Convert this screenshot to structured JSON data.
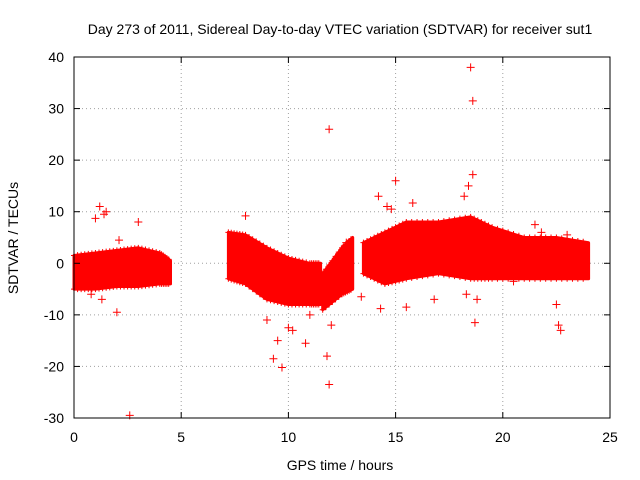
{
  "chart_data": {
    "type": "scatter",
    "title": "Day 273 of 2011, Sidereal Day-to-day VTEC variation (SDTVAR) for receiver sut1",
    "xlabel": "GPS time / hours",
    "ylabel": "SDTVAR / TECUs",
    "xlim": [
      0,
      25
    ],
    "ylim": [
      -30,
      40
    ],
    "xticks": [
      0,
      5,
      10,
      15,
      20,
      25
    ],
    "yticks": [
      -30,
      -20,
      -10,
      0,
      10,
      20,
      30,
      40
    ],
    "xtick_labels": [
      "0",
      "5",
      "10",
      "15",
      "20",
      "25"
    ],
    "ytick_labels": [
      "-30",
      "-20",
      "-10",
      "0",
      "10",
      "20",
      "30",
      "40"
    ],
    "grid": true,
    "marker": "+",
    "color": "#ff0000",
    "band_segments": [
      {
        "x": [
          0.0,
          1.0,
          2.0,
          3.0,
          4.0,
          4.5
        ],
        "upper": [
          1.5,
          2.0,
          2.5,
          3.0,
          2.0,
          0.5
        ],
        "lower": [
          -5.0,
          -5.0,
          -4.5,
          -4.5,
          -4.0,
          -4.0
        ]
      },
      {
        "x": [
          7.2,
          8.0,
          9.0,
          10.0,
          11.0,
          11.5
        ],
        "upper": [
          6.0,
          5.5,
          3.0,
          1.0,
          0.0,
          0.0
        ],
        "lower": [
          -3.0,
          -4.0,
          -7.0,
          -8.0,
          -8.0,
          -8.0
        ]
      },
      {
        "x": [
          11.6,
          12.5,
          13.0
        ],
        "upper": [
          -2.0,
          3.0,
          5.0
        ],
        "lower": [
          -9.0,
          -6.0,
          -5.0
        ]
      },
      {
        "x": [
          13.5,
          14.5,
          15.5,
          17.0,
          18.5,
          19.5,
          21.0,
          22.5,
          24.0
        ],
        "upper": [
          4.0,
          6.0,
          8.0,
          8.0,
          9.0,
          7.0,
          5.0,
          5.0,
          4.0
        ],
        "lower": [
          -2.0,
          -4.0,
          -3.0,
          -2.0,
          -3.0,
          -3.0,
          -3.0,
          -3.0,
          -3.0
        ]
      }
    ],
    "points": [
      {
        "x": 1.0,
        "y": 8.7
      },
      {
        "x": 1.2,
        "y": 11.0
      },
      {
        "x": 1.4,
        "y": 9.5
      },
      {
        "x": 1.5,
        "y": 10.0
      },
      {
        "x": 2.0,
        "y": -9.5
      },
      {
        "x": 2.1,
        "y": 4.5
      },
      {
        "x": 2.6,
        "y": -29.5
      },
      {
        "x": 3.0,
        "y": 8.0
      },
      {
        "x": 1.3,
        "y": -7.0
      },
      {
        "x": 0.8,
        "y": -6.0
      },
      {
        "x": 8.0,
        "y": 9.2
      },
      {
        "x": 9.0,
        "y": -11.0
      },
      {
        "x": 9.3,
        "y": -18.5
      },
      {
        "x": 9.5,
        "y": -15.0
      },
      {
        "x": 9.7,
        "y": -20.2
      },
      {
        "x": 10.0,
        "y": -12.5
      },
      {
        "x": 10.2,
        "y": -13.0
      },
      {
        "x": 10.8,
        "y": -15.5
      },
      {
        "x": 11.0,
        "y": -10.0
      },
      {
        "x": 11.9,
        "y": 26.0
      },
      {
        "x": 11.9,
        "y": -23.5
      },
      {
        "x": 11.8,
        "y": -18.0
      },
      {
        "x": 12.0,
        "y": -12.0
      },
      {
        "x": 12.7,
        "y": 4.0
      },
      {
        "x": 13.4,
        "y": -6.5
      },
      {
        "x": 14.2,
        "y": 13.0
      },
      {
        "x": 14.6,
        "y": 11.0
      },
      {
        "x": 14.8,
        "y": 10.5
      },
      {
        "x": 15.0,
        "y": 16.0
      },
      {
        "x": 14.3,
        "y": -8.8
      },
      {
        "x": 15.5,
        "y": -8.5
      },
      {
        "x": 15.8,
        "y": 11.7
      },
      {
        "x": 16.8,
        "y": -7.0
      },
      {
        "x": 18.2,
        "y": 13.0
      },
      {
        "x": 18.5,
        "y": 38.0
      },
      {
        "x": 18.6,
        "y": 31.5
      },
      {
        "x": 18.6,
        "y": 17.2
      },
      {
        "x": 18.4,
        "y": 15.0
      },
      {
        "x": 18.7,
        "y": -11.5
      },
      {
        "x": 18.8,
        "y": -7.0
      },
      {
        "x": 18.3,
        "y": -6.0
      },
      {
        "x": 20.5,
        "y": -3.5
      },
      {
        "x": 21.5,
        "y": 7.5
      },
      {
        "x": 21.8,
        "y": 6.0
      },
      {
        "x": 22.6,
        "y": -12.0
      },
      {
        "x": 22.7,
        "y": -13.0
      },
      {
        "x": 22.5,
        "y": -8.0
      },
      {
        "x": 23.0,
        "y": 5.5
      }
    ]
  }
}
